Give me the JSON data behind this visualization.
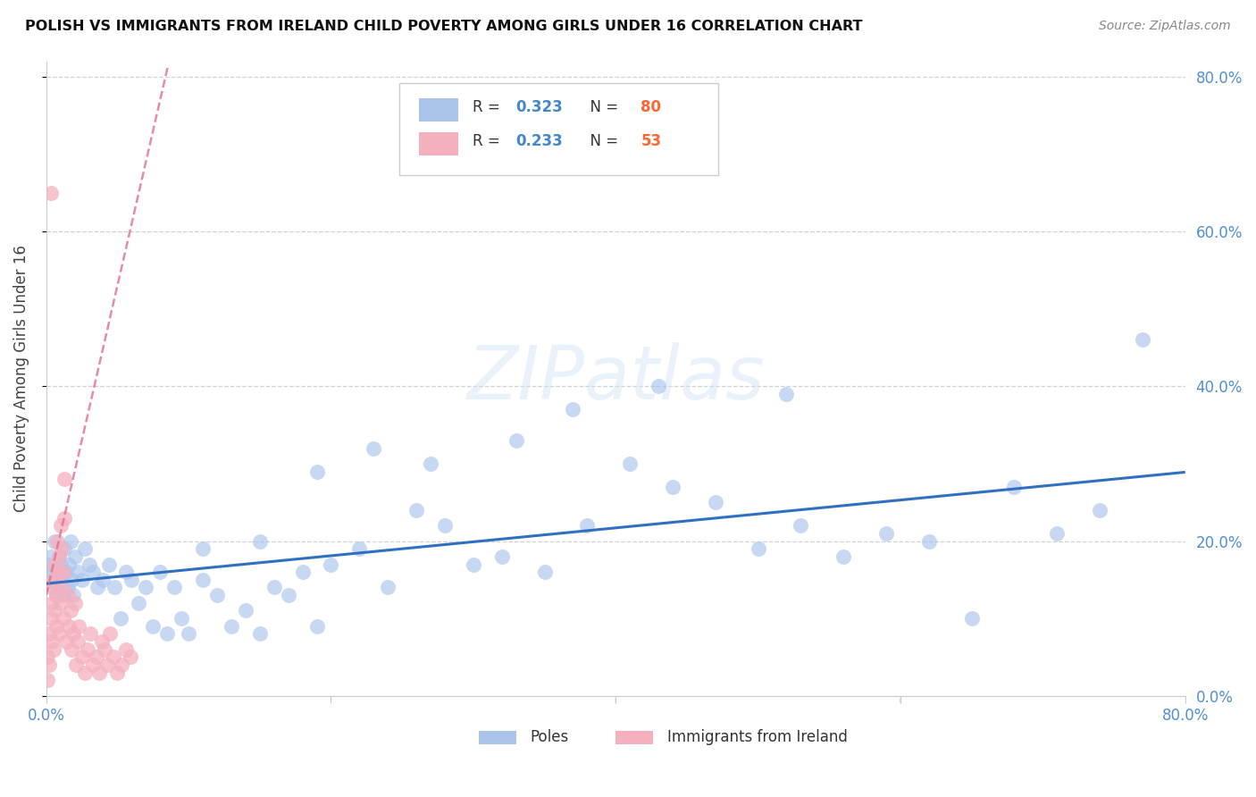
{
  "title": "POLISH VS IMMIGRANTS FROM IRELAND CHILD POVERTY AMONG GIRLS UNDER 16 CORRELATION CHART",
  "source": "Source: ZipAtlas.com",
  "ylabel": "Child Poverty Among Girls Under 16",
  "watermark": "ZIPatlas",
  "xlim": [
    0,
    0.8
  ],
  "ylim": [
    0.0,
    0.82
  ],
  "x_ticks": [
    0.0,
    0.2,
    0.4,
    0.6,
    0.8
  ],
  "y_ticks": [
    0.0,
    0.2,
    0.4,
    0.6,
    0.8
  ],
  "poles_R": 0.323,
  "poles_N": 80,
  "ireland_R": 0.233,
  "ireland_N": 53,
  "poles_color": "#aac4ec",
  "ireland_color": "#f5b0be",
  "trendline_poles_color": "#3070c0",
  "trendline_ireland_color": "#e07090",
  "poles_x": [
    0.001,
    0.002,
    0.003,
    0.004,
    0.005,
    0.006,
    0.007,
    0.008,
    0.009,
    0.01,
    0.011,
    0.012,
    0.013,
    0.014,
    0.015,
    0.016,
    0.017,
    0.018,
    0.019,
    0.02,
    0.022,
    0.025,
    0.027,
    0.03,
    0.033,
    0.036,
    0.04,
    0.044,
    0.048,
    0.052,
    0.056,
    0.06,
    0.065,
    0.07,
    0.075,
    0.08,
    0.085,
    0.09,
    0.095,
    0.1,
    0.11,
    0.12,
    0.13,
    0.14,
    0.15,
    0.16,
    0.17,
    0.18,
    0.19,
    0.2,
    0.22,
    0.24,
    0.26,
    0.28,
    0.3,
    0.32,
    0.35,
    0.38,
    0.41,
    0.44,
    0.47,
    0.5,
    0.53,
    0.56,
    0.59,
    0.62,
    0.65,
    0.68,
    0.71,
    0.74,
    0.52,
    0.43,
    0.37,
    0.33,
    0.27,
    0.23,
    0.19,
    0.15,
    0.11,
    0.77
  ],
  "poles_y": [
    0.17,
    0.16,
    0.18,
    0.15,
    0.14,
    0.2,
    0.13,
    0.16,
    0.18,
    0.17,
    0.15,
    0.13,
    0.19,
    0.16,
    0.14,
    0.17,
    0.2,
    0.15,
    0.13,
    0.18,
    0.16,
    0.15,
    0.19,
    0.17,
    0.16,
    0.14,
    0.15,
    0.17,
    0.14,
    0.1,
    0.16,
    0.15,
    0.12,
    0.14,
    0.09,
    0.16,
    0.08,
    0.14,
    0.1,
    0.08,
    0.15,
    0.13,
    0.09,
    0.11,
    0.08,
    0.14,
    0.13,
    0.16,
    0.09,
    0.17,
    0.19,
    0.14,
    0.24,
    0.22,
    0.17,
    0.18,
    0.16,
    0.22,
    0.3,
    0.27,
    0.25,
    0.19,
    0.22,
    0.18,
    0.21,
    0.2,
    0.1,
    0.27,
    0.21,
    0.24,
    0.39,
    0.4,
    0.37,
    0.33,
    0.3,
    0.32,
    0.29,
    0.2,
    0.19,
    0.46
  ],
  "ireland_x": [
    0.001,
    0.001,
    0.002,
    0.002,
    0.003,
    0.003,
    0.004,
    0.004,
    0.005,
    0.005,
    0.006,
    0.006,
    0.007,
    0.007,
    0.008,
    0.008,
    0.009,
    0.009,
    0.01,
    0.01,
    0.011,
    0.011,
    0.012,
    0.012,
    0.013,
    0.013,
    0.014,
    0.015,
    0.016,
    0.017,
    0.018,
    0.019,
    0.02,
    0.021,
    0.022,
    0.023,
    0.025,
    0.027,
    0.029,
    0.031,
    0.033,
    0.035,
    0.037,
    0.039,
    0.041,
    0.043,
    0.045,
    0.047,
    0.05,
    0.053,
    0.056,
    0.059,
    0.003
  ],
  "ireland_y": [
    0.02,
    0.05,
    0.04,
    0.08,
    0.1,
    0.14,
    0.07,
    0.12,
    0.06,
    0.15,
    0.11,
    0.17,
    0.09,
    0.13,
    0.16,
    0.2,
    0.08,
    0.18,
    0.12,
    0.22,
    0.14,
    0.19,
    0.1,
    0.16,
    0.23,
    0.28,
    0.07,
    0.13,
    0.09,
    0.11,
    0.06,
    0.08,
    0.12,
    0.04,
    0.07,
    0.09,
    0.05,
    0.03,
    0.06,
    0.08,
    0.04,
    0.05,
    0.03,
    0.07,
    0.06,
    0.04,
    0.08,
    0.05,
    0.03,
    0.04,
    0.06,
    0.05,
    0.65
  ]
}
